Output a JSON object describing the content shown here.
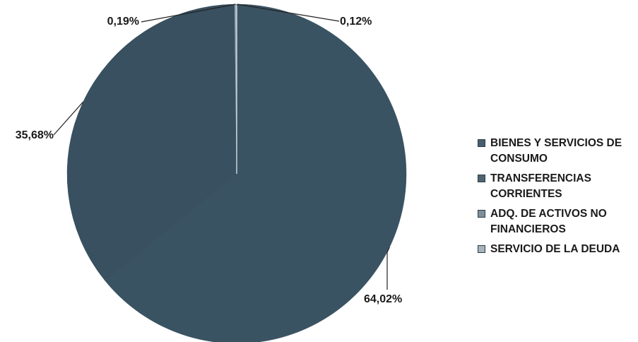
{
  "chart_data": {
    "type": "pie",
    "slices": [
      {
        "name": "BIENES Y SERVICIOS DE CONSUMO",
        "value": 0.12,
        "label": "0,12%",
        "color": "#3b5566"
      },
      {
        "name": "TRANSFERENCIAS CORRIENTES",
        "value": 64.02,
        "label": "64,02%",
        "color": "#3a5363"
      },
      {
        "name": "ADQ. DE ACTIVOS NO FINANCIEROS",
        "value": 35.68,
        "label": "35,68%",
        "color": "#38505f"
      },
      {
        "name": "SERVICIO DE LA DEUDA",
        "value": 0.19,
        "label": "0,19%",
        "color": "#9aa8b0"
      }
    ],
    "legend_position": "right"
  },
  "legend": {
    "items": [
      {
        "label": "BIENES Y SERVICIOS DE CONSUMO",
        "color": "#4a5e6b"
      },
      {
        "label": "TRANSFERENCIAS CORRIENTES",
        "color": "#4f6470"
      },
      {
        "label": "ADQ. DE ACTIVOS NO FINANCIEROS",
        "color": "#7f8f99"
      },
      {
        "label": "SERVICIO DE LA DEUDA",
        "color": "#a7b3ba"
      }
    ]
  }
}
